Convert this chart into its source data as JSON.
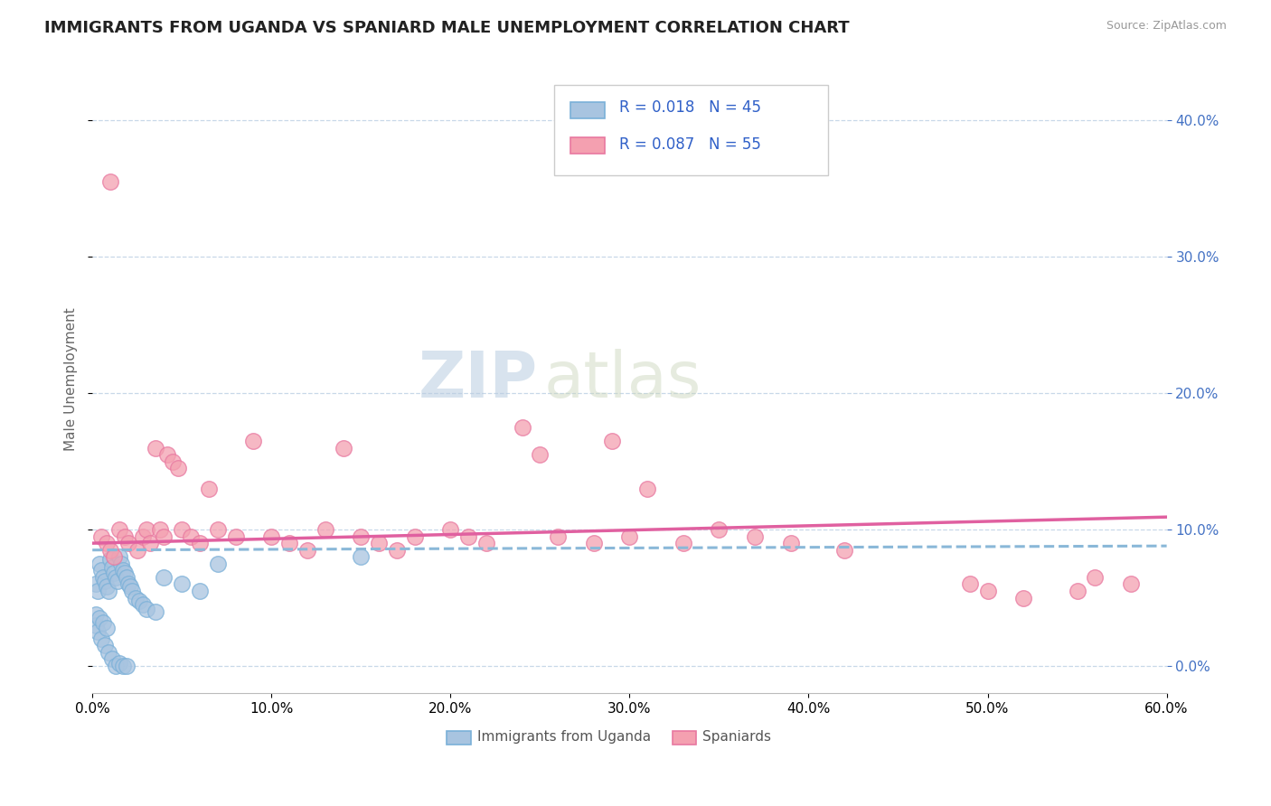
{
  "title": "IMMIGRANTS FROM UGANDA VS SPANIARD MALE UNEMPLOYMENT CORRELATION CHART",
  "source": "Source: ZipAtlas.com",
  "ylabel": "Male Unemployment",
  "legend_label1": "Immigrants from Uganda",
  "legend_label2": "Spaniards",
  "R1": 0.018,
  "N1": 45,
  "R2": 0.087,
  "N2": 55,
  "xlim": [
    0.0,
    0.6
  ],
  "ylim": [
    -0.02,
    0.44
  ],
  "yticks": [
    0.0,
    0.1,
    0.2,
    0.3,
    0.4
  ],
  "xticks": [
    0.0,
    0.1,
    0.2,
    0.3,
    0.4,
    0.5,
    0.6
  ],
  "color_uganda": "#a8c4e0",
  "color_spaniard": "#f4a0b0",
  "edge_uganda": "#7ab0d8",
  "edge_spaniard": "#e878a0",
  "trendline_uganda_color": "#8ab8d8",
  "trendline_spaniard_color": "#e060a0",
  "watermark_zip": "ZIP",
  "watermark_atlas": "atlas",
  "background": "#ffffff",
  "grid_color": "#c8d8e8",
  "uganda_x": [
    0.002,
    0.003,
    0.004,
    0.005,
    0.006,
    0.007,
    0.008,
    0.009,
    0.01,
    0.011,
    0.012,
    0.013,
    0.014,
    0.015,
    0.016,
    0.017,
    0.018,
    0.019,
    0.02,
    0.021,
    0.022,
    0.024,
    0.026,
    0.028,
    0.03,
    0.035,
    0.04,
    0.05,
    0.06,
    0.07,
    0.002,
    0.003,
    0.005,
    0.007,
    0.009,
    0.011,
    0.013,
    0.015,
    0.017,
    0.019,
    0.002,
    0.004,
    0.006,
    0.008,
    0.15
  ],
  "uganda_y": [
    0.06,
    0.055,
    0.075,
    0.07,
    0.065,
    0.062,
    0.058,
    0.055,
    0.078,
    0.072,
    0.068,
    0.065,
    0.062,
    0.08,
    0.075,
    0.07,
    0.068,
    0.065,
    0.06,
    0.058,
    0.055,
    0.05,
    0.048,
    0.045,
    0.042,
    0.04,
    0.065,
    0.06,
    0.055,
    0.075,
    0.03,
    0.025,
    0.02,
    0.015,
    0.01,
    0.005,
    0.0,
    0.002,
    0.0,
    0.0,
    0.038,
    0.035,
    0.032,
    0.028,
    0.08
  ],
  "spaniard_x": [
    0.005,
    0.008,
    0.01,
    0.012,
    0.015,
    0.018,
    0.02,
    0.025,
    0.028,
    0.03,
    0.032,
    0.035,
    0.038,
    0.04,
    0.042,
    0.045,
    0.048,
    0.05,
    0.055,
    0.06,
    0.065,
    0.07,
    0.08,
    0.09,
    0.1,
    0.11,
    0.12,
    0.13,
    0.14,
    0.15,
    0.16,
    0.17,
    0.18,
    0.2,
    0.21,
    0.22,
    0.24,
    0.25,
    0.26,
    0.28,
    0.29,
    0.3,
    0.31,
    0.33,
    0.35,
    0.37,
    0.39,
    0.42,
    0.49,
    0.5,
    0.52,
    0.55,
    0.58,
    0.56,
    0.01
  ],
  "spaniard_y": [
    0.095,
    0.09,
    0.085,
    0.08,
    0.1,
    0.095,
    0.09,
    0.085,
    0.095,
    0.1,
    0.09,
    0.16,
    0.1,
    0.095,
    0.155,
    0.15,
    0.145,
    0.1,
    0.095,
    0.09,
    0.13,
    0.1,
    0.095,
    0.165,
    0.095,
    0.09,
    0.085,
    0.1,
    0.16,
    0.095,
    0.09,
    0.085,
    0.095,
    0.1,
    0.095,
    0.09,
    0.175,
    0.155,
    0.095,
    0.09,
    0.165,
    0.095,
    0.13,
    0.09,
    0.1,
    0.095,
    0.09,
    0.085,
    0.06,
    0.055,
    0.05,
    0.055,
    0.06,
    0.065,
    0.355
  ]
}
